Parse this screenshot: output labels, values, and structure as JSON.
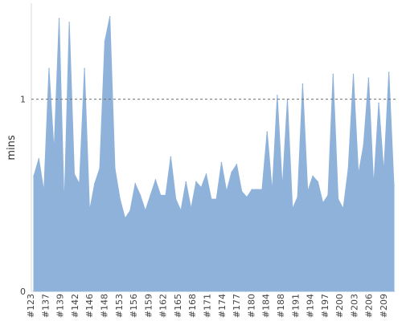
{
  "chart_data": {
    "type": "area",
    "title": "",
    "xlabel": "",
    "ylabel": "mins",
    "ylim": [
      0,
      1.5
    ],
    "y_ticks": [
      0,
      1
    ],
    "reference_line": 1,
    "grid": false,
    "legend": "none",
    "colors": {
      "series": "#8fb2db",
      "axis": "#d9d9d9",
      "reference_line": "#6f6f6f",
      "text": "#444444"
    },
    "x_tick_labels": [
      "#123",
      "#137",
      "#139",
      "#142",
      "#146",
      "#148",
      "#153",
      "#156",
      "#159",
      "#162",
      "#165",
      "#168",
      "#171",
      "#174",
      "#177",
      "#180",
      "#184",
      "#188",
      "#191",
      "#194",
      "#197",
      "#200",
      "#203",
      "#206",
      "#209"
    ],
    "series": [
      {
        "values": [
          0.6,
          0.69,
          0.52,
          1.16,
          0.73,
          1.42,
          0.44,
          1.4,
          0.61,
          0.56,
          1.16,
          0.42,
          0.56,
          0.64,
          1.3,
          1.43,
          0.64,
          0.48,
          0.38,
          0.42,
          0.56,
          0.5,
          0.42,
          0.5,
          0.58,
          0.5,
          0.5,
          0.7,
          0.48,
          0.42,
          0.57,
          0.43,
          0.57,
          0.54,
          0.61,
          0.48,
          0.48,
          0.67,
          0.52,
          0.62,
          0.66,
          0.52,
          0.49,
          0.53,
          0.53,
          0.53,
          0.83,
          0.52,
          1.02,
          0.54,
          1.0,
          0.43,
          0.49,
          1.08,
          0.52,
          0.6,
          0.57,
          0.46,
          0.5,
          1.13,
          0.48,
          0.43,
          0.64,
          1.13,
          0.61,
          0.76,
          1.11,
          0.55,
          0.98,
          0.62,
          1.14,
          0.55
        ]
      }
    ]
  }
}
